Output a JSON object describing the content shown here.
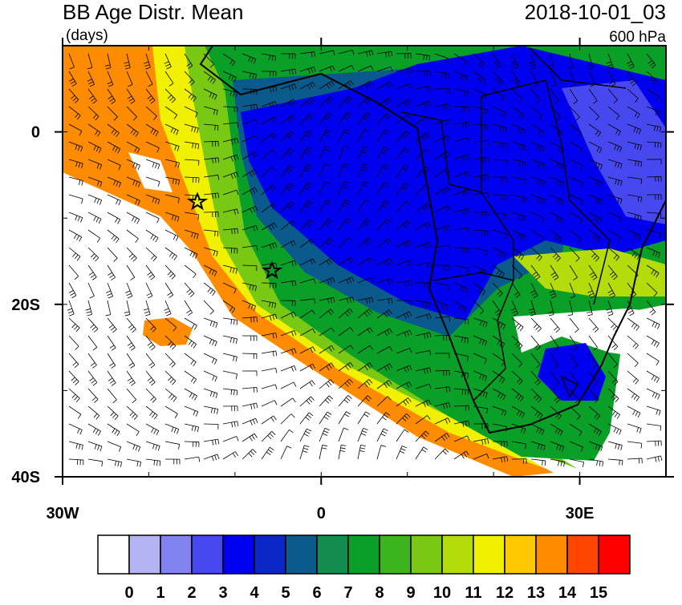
{
  "header": {
    "title": "BB Age Distr. Mean",
    "units": "(days)",
    "time": "2018-10-01_03",
    "level": "600 hPa"
  },
  "map": {
    "lon_range": [
      -30,
      40
    ],
    "lat_range": [
      -40,
      10
    ],
    "lon_ticks": [
      {
        "value": -30,
        "label": "30W"
      },
      0,
      {
        "value": 30,
        "label": "30E"
      }
    ],
    "lat_ticks": [
      0,
      {
        "value": -20,
        "label": "20S"
      },
      {
        "value": -40,
        "label": "40S"
      }
    ]
  },
  "colorbar": {
    "labels": [
      0,
      1,
      2,
      3,
      4,
      5,
      6,
      7,
      8,
      9,
      10,
      11,
      12,
      13,
      14,
      15
    ],
    "colors": [
      "#ffffff",
      "#b4b4f5",
      "#8282f0",
      "#4848f0",
      "#0000f0",
      "#0a28c8",
      "#0a5a8c",
      "#148c50",
      "#0aa028",
      "#3cb41e",
      "#78c814",
      "#b4dc0a",
      "#f0f000",
      "#ffc800",
      "#ff8c00",
      "#ff4600",
      "#ff0000"
    ]
  }
}
